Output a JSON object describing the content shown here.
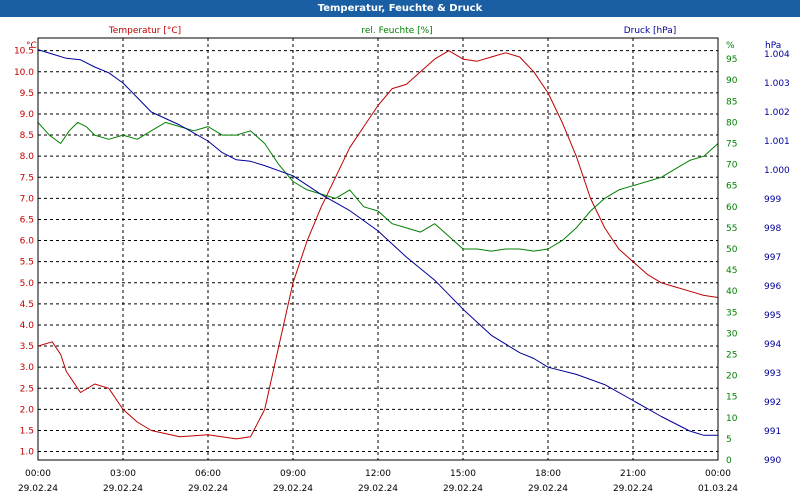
{
  "title": "Temperatur, Feuchte & Druck",
  "chart_data": {
    "type": "line",
    "title": "Temperatur, Feuchte & Druck",
    "x_ticks": [
      {
        "time": "00:00",
        "date": "29.02.24"
      },
      {
        "time": "03:00",
        "date": "29.02.24"
      },
      {
        "time": "06:00",
        "date": "29.02.24"
      },
      {
        "time": "09:00",
        "date": "29.02.24"
      },
      {
        "time": "12:00",
        "date": "29.02.24"
      },
      {
        "time": "15:00",
        "date": "29.02.24"
      },
      {
        "time": "18:00",
        "date": "29.02.24"
      },
      {
        "time": "21:00",
        "date": "29.02.24"
      },
      {
        "time": "00:00",
        "date": "01.03.24"
      }
    ],
    "xlim_hours": [
      0,
      24
    ],
    "grid": true,
    "axes": {
      "temperature": {
        "label": "Temperatur [°C]",
        "unit": "°C",
        "color": "#c00000",
        "ylim": [
          0.8,
          10.8
        ],
        "ticks": [
          "1.0",
          "1.5",
          "2.0",
          "2.5",
          "3.0",
          "3.5",
          "4.0",
          "4.5",
          "5.0",
          "5.5",
          "6.0",
          "6.5",
          "7.0",
          "7.5",
          "8.0",
          "8.5",
          "9.0",
          "9.5",
          "10.0",
          "10.5"
        ]
      },
      "humidity": {
        "label": "rel. Feuchte [%]",
        "unit": "%",
        "color": "#008000",
        "ylim": [
          0,
          100
        ],
        "ticks": [
          "0",
          "5",
          "10",
          "15",
          "20",
          "25",
          "30",
          "35",
          "40",
          "45",
          "50",
          "55",
          "60",
          "65",
          "70",
          "75",
          "80",
          "85",
          "90",
          "95"
        ]
      },
      "pressure": {
        "label": "Druck [hPa]",
        "unit": "hPa",
        "color": "#000099",
        "ylim": [
          990,
          1004.55
        ],
        "ticks": [
          "990",
          "991",
          "992",
          "993",
          "994",
          "995",
          "996",
          "997",
          "998",
          "999",
          "1.000",
          "1.001",
          "1.002",
          "1.003",
          "1.004"
        ]
      }
    },
    "series": [
      {
        "name": "Temperatur [°C]",
        "axis": "temperature",
        "color": "#c00000",
        "x": [
          0,
          0.5,
          0.8,
          1.0,
          1.5,
          2.0,
          2.5,
          3.0,
          3.5,
          4.0,
          5.0,
          6.0,
          7.0,
          7.5,
          8.0,
          8.5,
          9.0,
          9.5,
          10.0,
          10.5,
          11.0,
          11.5,
          12.0,
          12.5,
          13.0,
          13.5,
          14.0,
          14.5,
          15.0,
          15.5,
          16.0,
          16.5,
          17.0,
          17.5,
          18.0,
          18.5,
          19.0,
          19.5,
          20.0,
          20.5,
          21.0,
          21.5,
          22.0,
          22.5,
          23.0,
          23.5,
          24.0
        ],
        "y": [
          3.5,
          3.6,
          3.3,
          2.9,
          2.4,
          2.6,
          2.5,
          2.0,
          1.7,
          1.5,
          1.35,
          1.4,
          1.3,
          1.35,
          2.0,
          3.5,
          5.0,
          6.0,
          6.8,
          7.5,
          8.2,
          8.7,
          9.2,
          9.6,
          9.7,
          10.0,
          10.3,
          10.5,
          10.3,
          10.25,
          10.35,
          10.45,
          10.35,
          10.0,
          9.5,
          8.8,
          8.0,
          7.0,
          6.3,
          5.8,
          5.5,
          5.2,
          5.0,
          4.9,
          4.8,
          4.7,
          4.65
        ]
      },
      {
        "name": "rel. Feuchte [%]",
        "axis": "humidity",
        "color": "#008000",
        "x": [
          0,
          0.4,
          0.8,
          1.1,
          1.4,
          1.7,
          2.0,
          2.5,
          3.0,
          3.5,
          4.0,
          4.5,
          5.0,
          5.5,
          6.0,
          6.5,
          7.0,
          7.5,
          8.0,
          8.5,
          9.0,
          9.5,
          10.0,
          10.5,
          11.0,
          11.5,
          12.0,
          12.5,
          13.0,
          13.5,
          14.0,
          14.5,
          15.0,
          15.5,
          16.0,
          16.5,
          17.0,
          17.5,
          18.0,
          18.5,
          19.0,
          19.5,
          20.0,
          20.5,
          21.0,
          21.5,
          22.0,
          22.5,
          23.0,
          23.5,
          24.0
        ],
        "y": [
          80,
          77,
          75,
          78,
          80,
          79,
          77,
          76,
          77,
          76,
          78,
          80,
          79,
          78,
          79,
          77,
          77,
          78,
          75,
          70,
          66,
          64,
          63,
          62,
          64,
          60,
          59,
          56,
          55,
          54,
          56,
          53,
          50,
          50,
          49.5,
          50,
          50,
          49.5,
          50,
          52,
          55,
          59,
          62,
          64,
          65,
          66,
          67,
          69,
          71,
          72,
          75
        ]
      },
      {
        "name": "Druck [hPa]",
        "axis": "pressure",
        "color": "#000099",
        "x": [
          0,
          0.5,
          1.0,
          1.5,
          2.0,
          2.5,
          3.0,
          3.5,
          4.0,
          5.0,
          6.0,
          6.5,
          7.0,
          7.5,
          8.0,
          9.0,
          10.0,
          11.0,
          12.0,
          13.0,
          14.0,
          15.0,
          16.0,
          17.0,
          17.5,
          18.0,
          19.0,
          20.0,
          21.0,
          22.0,
          23.0,
          23.5,
          24.0
        ],
        "y": [
          1004.15,
          1004.0,
          1003.85,
          1003.8,
          1003.55,
          1003.35,
          1003.0,
          1002.5,
          1002.0,
          1001.55,
          1001.0,
          1000.6,
          1000.35,
          1000.3,
          1000.15,
          999.8,
          999.15,
          998.6,
          997.9,
          997.0,
          996.2,
          995.2,
          994.3,
          993.7,
          993.5,
          993.2,
          992.95,
          992.6,
          992.05,
          991.5,
          991.0,
          990.85,
          990.85
        ]
      }
    ]
  }
}
